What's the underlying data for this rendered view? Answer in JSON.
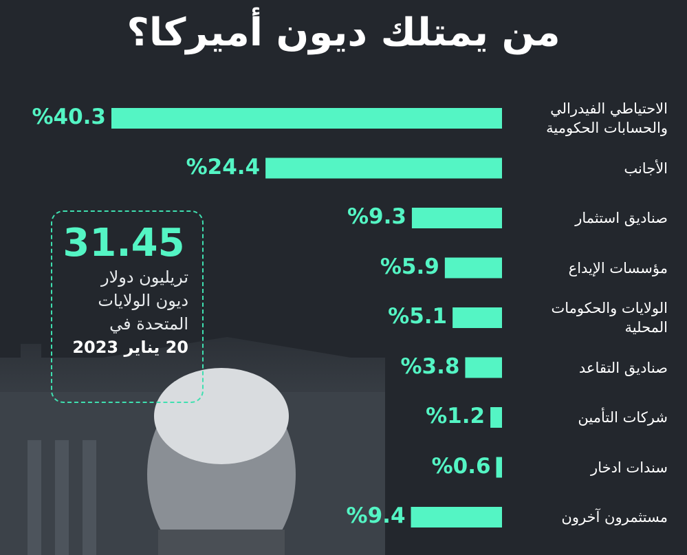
{
  "title": "من يمتلك ديون أميركا؟",
  "summary": {
    "amount": "31.45",
    "unit_line": "تريليون دولار",
    "line2": "ديون الولايات",
    "line3": "المتحدة في",
    "date": "20 يناير 2023"
  },
  "colors": {
    "bar": "#54f5c4",
    "background": "#23272d",
    "text": "#ffffff"
  },
  "chart_data": {
    "type": "bar",
    "orientation": "horizontal",
    "title": "من يمتلك ديون أميركا؟",
    "categories": [
      "الاحتياطي الفيدرالي\nوالحسابات الحكومية",
      "الأجانب",
      "صناديق استثمار",
      "مؤسسات الإيداع",
      "الولايات والحكومات\nالمحلية",
      "صناديق التقاعد",
      "شركات التأمين",
      "سندات ادخار",
      "مستثمرون آخرون"
    ],
    "values": [
      40.3,
      24.4,
      9.3,
      5.9,
      5.1,
      3.8,
      1.2,
      0.6,
      9.4
    ],
    "value_labels": [
      "%40.3",
      "%24.4",
      "%9.3",
      "%5.9",
      "%5.1",
      "%3.8",
      "%1.2",
      "%0.6",
      "%9.4"
    ],
    "unit": "%",
    "xlim": [
      0,
      40.3
    ],
    "grid": false,
    "legend": "none"
  }
}
